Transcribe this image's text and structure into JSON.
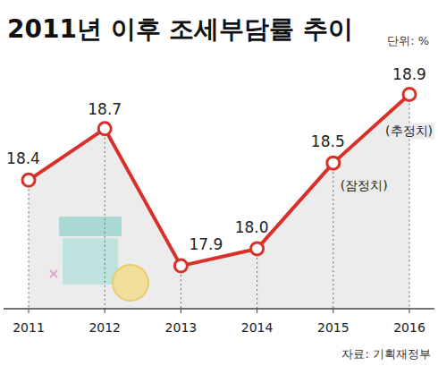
{
  "chart_data": {
    "type": "line",
    "title": "2011년 이후 조세부담률 추이",
    "unit_label": "단위: %",
    "source": "자료: 기획재정부",
    "categories": [
      "2011",
      "2012",
      "2013",
      "2014",
      "2015",
      "2016"
    ],
    "values": [
      18.4,
      18.7,
      17.9,
      18.0,
      18.5,
      18.9
    ],
    "value_labels": [
      "18.4",
      "18.7",
      "17.9",
      "18.0",
      "18.5",
      "18.9"
    ],
    "annotations": [
      {
        "category": "2015",
        "text": "(잠정치)"
      },
      {
        "category": "2016",
        "text": "(추정치)"
      }
    ],
    "color": "#d9302a",
    "ylim": [
      17.65,
      19.2
    ],
    "yticks": [],
    "grid": false,
    "data_labels": true,
    "tick_labels": "x",
    "marker": "circle"
  }
}
